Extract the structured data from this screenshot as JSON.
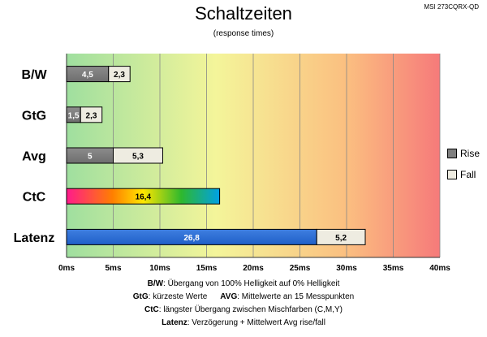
{
  "title": "Schaltzeiten",
  "subtitle": "(response times)",
  "model": "MSI 273CQRX-QD",
  "legend": [
    {
      "label": "Rise",
      "color": "#7f7f7f"
    },
    {
      "label": "Fall",
      "color": "#eeece1"
    }
  ],
  "notes": {
    "bw_key": "B/W",
    "bw_text": ":  Übergang von 100% Helligkeit auf 0% Helligkeit",
    "gtg_key": "GtG",
    "gtg_text": ": kürzeste  Werte",
    "avg_key": "AVG",
    "avg_text": ": Mittelwerte  an 15 Messpunkten",
    "ctc_key": "CtC",
    "ctc_text": ": längster Übergang  zwischen Mischfarben  (C,M,Y)",
    "latenz_key": "Latenz",
    "latenz_text": ": Verzögerung  + Mittelwert Avg rise/fall"
  },
  "chart_data": {
    "type": "bar",
    "orientation": "horizontal",
    "stacked": true,
    "categories": [
      "B/W",
      "GtG",
      "Avg",
      "CtC",
      "Latenz"
    ],
    "series": [
      {
        "name": "Rise",
        "values": [
          4.5,
          1.5,
          5,
          16.4,
          26.8
        ],
        "labels": [
          "4,5",
          "1,5",
          "5",
          "16,4",
          "26,8"
        ]
      },
      {
        "name": "Fall",
        "values": [
          2.3,
          2.3,
          5.3,
          null,
          5.2
        ],
        "labels": [
          "2,3",
          "2,3",
          "5,3",
          "",
          "5,2"
        ]
      }
    ],
    "xlim": [
      0,
      40
    ],
    "xticks": [
      0,
      5,
      10,
      15,
      20,
      25,
      30,
      35,
      40
    ],
    "xtick_labels": [
      "0ms",
      "5ms",
      "10ms",
      "15ms",
      "20ms",
      "25ms",
      "30ms",
      "35ms",
      "40ms"
    ],
    "background": "gradient green-yellow-red",
    "grid": true,
    "legend_position": "right"
  }
}
